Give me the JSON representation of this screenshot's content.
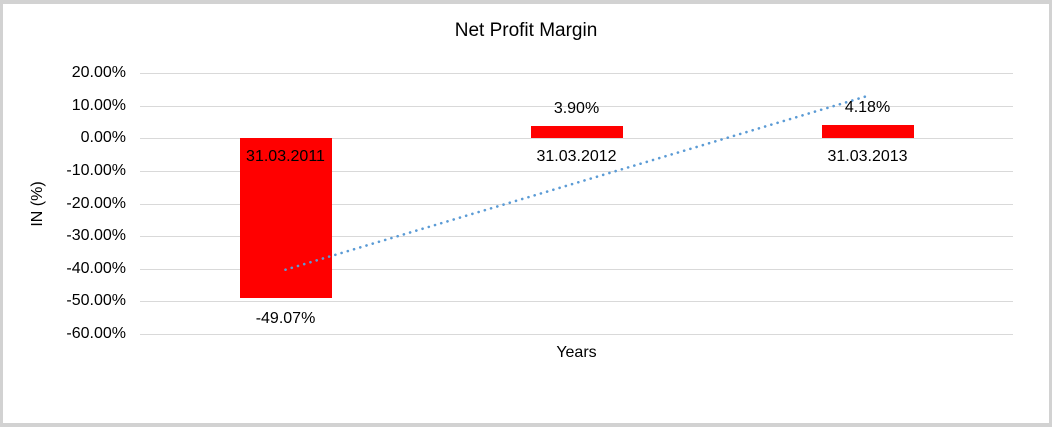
{
  "window": {
    "background": "#ffffff",
    "border_color": "#d2d2d2"
  },
  "chart_data": {
    "type": "bar",
    "title": "Net Profit Margin",
    "xlabel": "Years",
    "ylabel": "IN (%)",
    "categories": [
      "31.03.2011",
      "31.03.2012",
      "31.03.2013"
    ],
    "values": [
      -49.07,
      3.9,
      4.18
    ],
    "value_labels": [
      "-49.07%",
      "3.90%",
      "4.18%"
    ],
    "ylim": [
      -60,
      20
    ],
    "ytick_step": 10,
    "ytick_labels": [
      "20.00%",
      "10.00%",
      "0.00%",
      "-10.00%",
      "-20.00%",
      "-30.00%",
      "-40.00%",
      "-50.00%",
      "-60.00%"
    ],
    "grid": true,
    "legend": "none",
    "bar_color": "#ff0000",
    "text_color": "#000000",
    "gridline_color": "#d9d9d9",
    "trendline": {
      "type": "linear",
      "style": "dotted",
      "color": "#5b9bd5",
      "start_value": -40.29,
      "end_value": 12.96
    }
  }
}
